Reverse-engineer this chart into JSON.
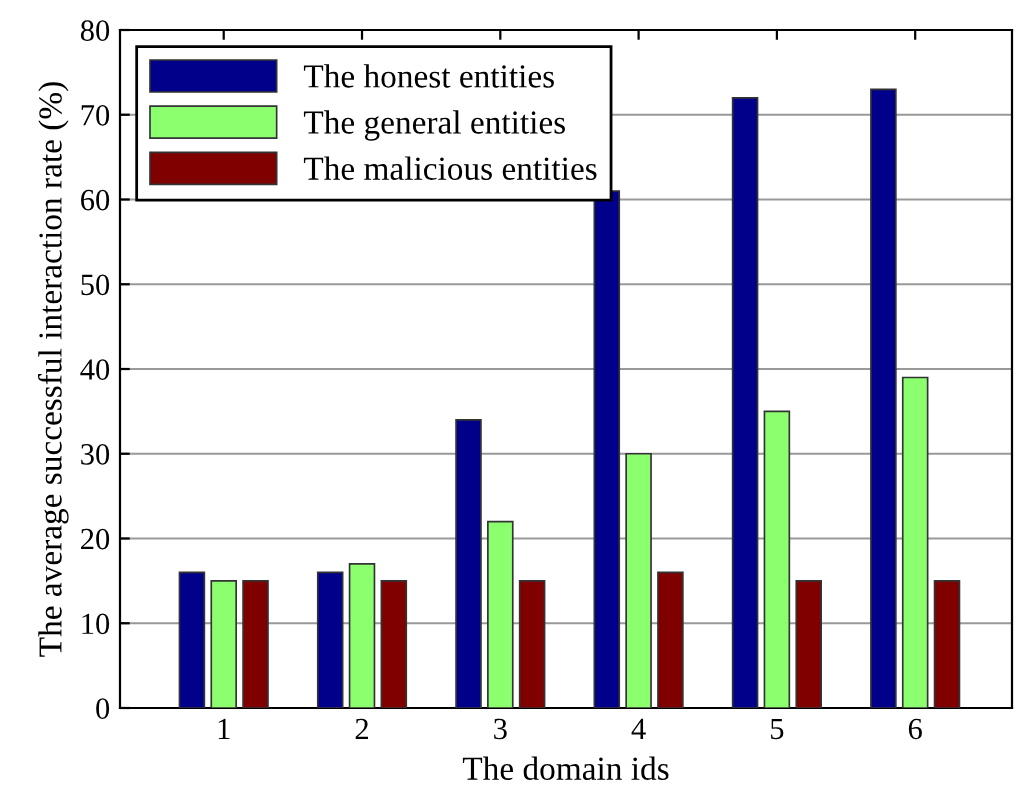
{
  "chart_data": {
    "type": "bar",
    "xlabel": "The domain ids",
    "ylabel": "The average successful interaction rate (%)",
    "categories": [
      "1",
      "2",
      "3",
      "4",
      "5",
      "6"
    ],
    "series": [
      {
        "name": "The honest entities",
        "color": "#00008b",
        "values": [
          16,
          16,
          34,
          61,
          72,
          73
        ]
      },
      {
        "name": "The general entities",
        "color": "#8cff6e",
        "values": [
          15,
          17,
          22,
          30,
          35,
          39
        ]
      },
      {
        "name": "The malicious entities",
        "color": "#800000",
        "values": [
          15,
          15,
          15,
          16,
          15,
          15
        ]
      }
    ],
    "ylim": [
      0,
      80
    ],
    "yticks": [
      0,
      10,
      20,
      30,
      40,
      50,
      60,
      70,
      80
    ],
    "grid": "y",
    "legend": "top left"
  }
}
